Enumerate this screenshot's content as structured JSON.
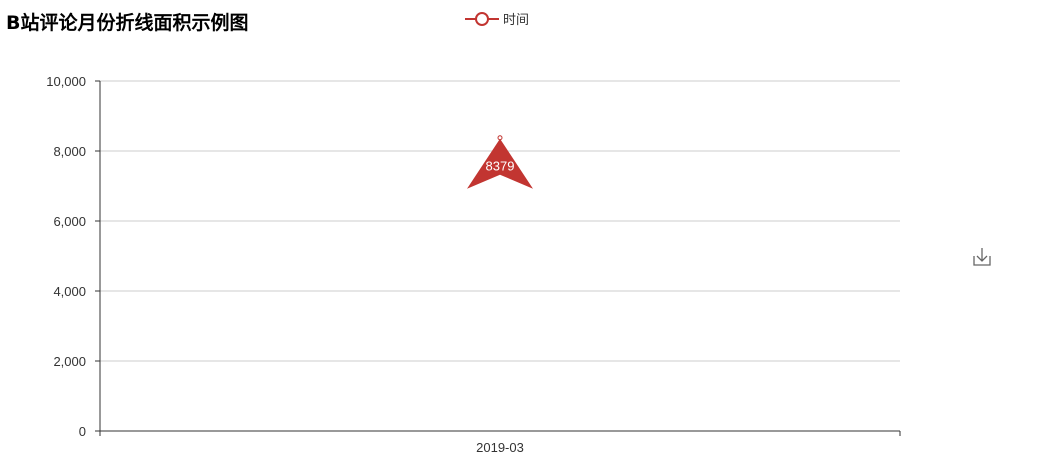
{
  "title": "B站评论月份折线面积示例图",
  "legend": {
    "label": "时间",
    "color": "#c23531"
  },
  "toolbox": {
    "icon": "download-icon"
  },
  "chart_data": {
    "type": "area",
    "title": "B站评论月份折线面积示例图",
    "categories": [
      "2019-03"
    ],
    "series": [
      {
        "name": "时间",
        "values": [
          8379
        ],
        "color": "#c23531"
      }
    ],
    "ylim": [
      0,
      10000
    ],
    "yticks": [
      "0",
      "2,000",
      "4,000",
      "6,000",
      "8,000",
      "10,000"
    ],
    "ytick_values": [
      0,
      2000,
      4000,
      6000,
      8000,
      10000
    ],
    "markpoint": {
      "value": "8379",
      "type": "max"
    },
    "grid": true,
    "legend_position": "top-center"
  }
}
